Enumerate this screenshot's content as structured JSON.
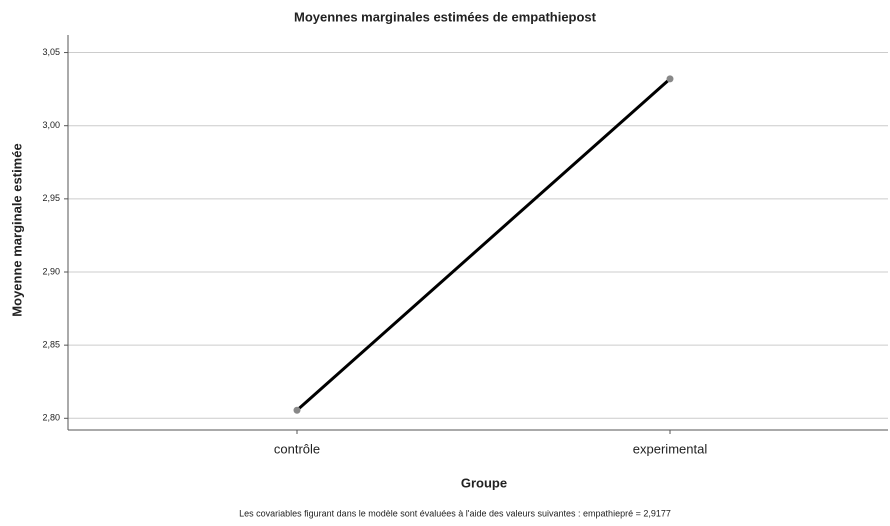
{
  "chart_data": {
    "type": "line",
    "title": "Moyennes marginales estimées de empathiepost",
    "x_label": "Groupe",
    "y_label": "Moyenne marginale estimée",
    "annotation": "Les covariables figurant dans le modèle sont évaluées à l'aide des valeurs suivantes : empathiepré = 2,9177",
    "categories": [
      "contrôle",
      "experimental"
    ],
    "values": [
      2.8055,
      3.032
    ],
    "color": "#000000",
    "marker_color": "#888888",
    "ylim": [
      2.792,
      3.062
    ],
    "yticks": [
      {
        "value": 2.8,
        "label": "2,80"
      },
      {
        "value": 2.85,
        "label": "2,85"
      },
      {
        "value": 2.9,
        "label": "2,90"
      },
      {
        "value": 2.95,
        "label": "2,95"
      },
      {
        "value": 3.0,
        "label": "3,00"
      },
      {
        "value": 3.05,
        "label": "3,05"
      }
    ],
    "grid": true
  }
}
